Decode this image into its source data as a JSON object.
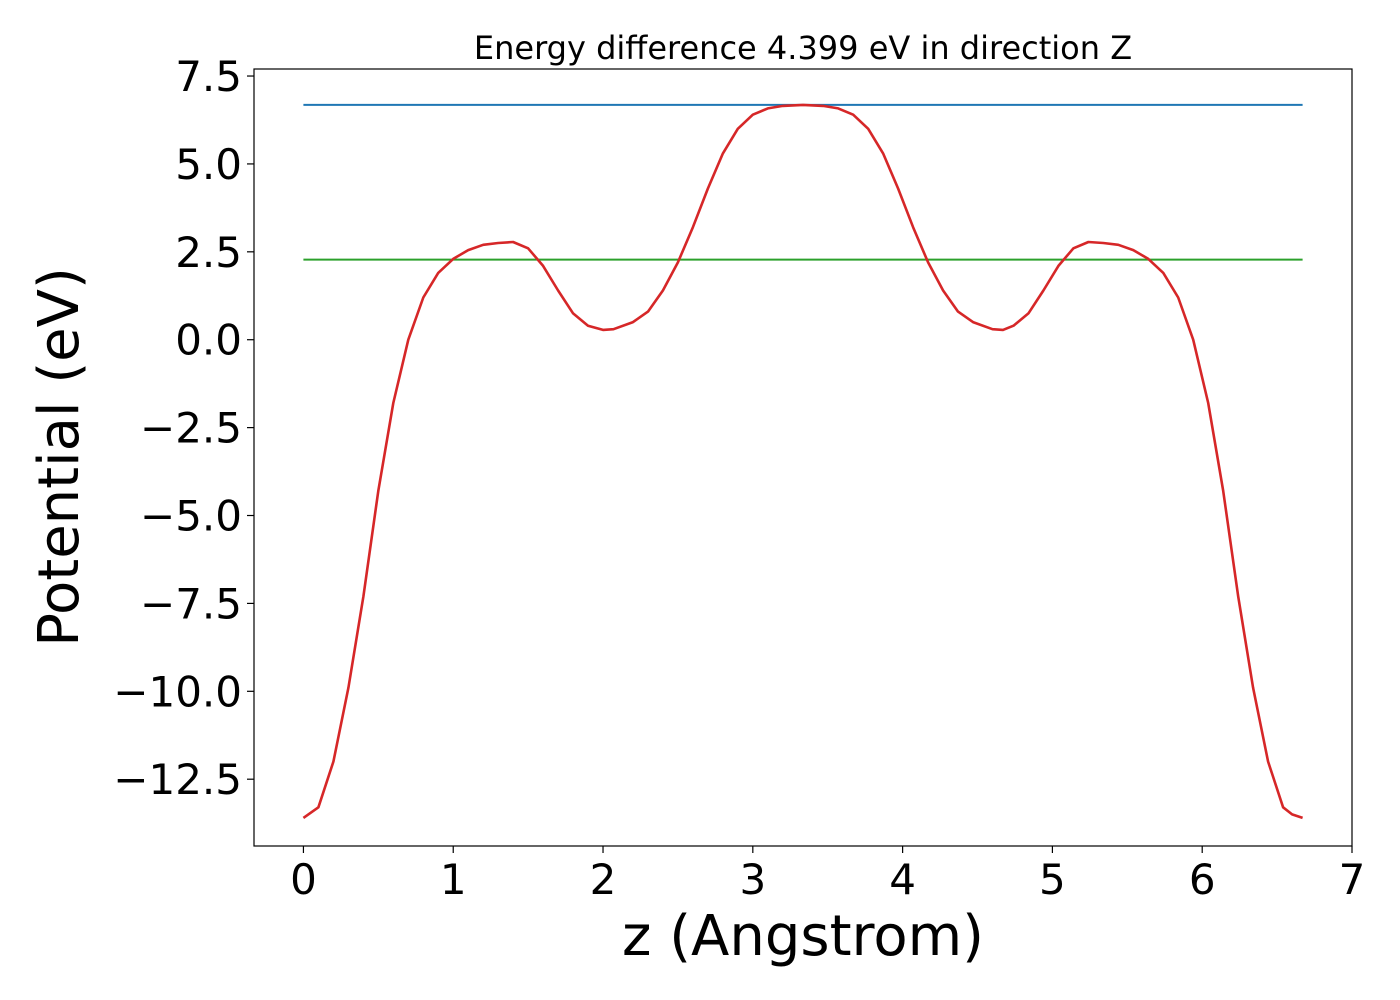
{
  "chart_data": {
    "type": "line",
    "title": "Energy difference 4.399 eV in direction Z",
    "xlabel": "z (Angstrom)",
    "ylabel": "Potential (eV)",
    "xlim": [
      -0.33,
      7.0
    ],
    "ylim": [
      -14.4,
      7.7
    ],
    "xticks": [
      "0",
      "1",
      "2",
      "3",
      "4",
      "5",
      "6",
      "7"
    ],
    "yticks": [
      "−12.5",
      "−10.0",
      "−7.5",
      "−5.0",
      "−2.5",
      "0.0",
      "2.5",
      "5.0",
      "7.5"
    ],
    "grid": false,
    "legend": "none",
    "series": [
      {
        "color": "#1f77b4",
        "x": [
          0,
          6.67
        ],
        "y": [
          6.68,
          6.68
        ]
      },
      {
        "color": "#2ca02c",
        "x": [
          0,
          6.67
        ],
        "y": [
          2.28,
          2.28
        ]
      },
      {
        "color": "#d62728",
        "x": [
          0.0,
          0.1,
          0.2,
          0.3,
          0.4,
          0.5,
          0.6,
          0.7,
          0.8,
          0.9,
          1.0,
          1.1,
          1.2,
          1.3,
          1.4,
          1.5,
          1.6,
          1.7,
          1.8,
          1.9,
          2.0,
          2.07,
          2.2,
          2.3,
          2.4,
          2.5,
          2.6,
          2.7,
          2.8,
          2.9,
          3.0,
          3.1,
          3.2,
          3.335,
          3.47,
          3.57,
          3.67,
          3.77,
          3.87,
          3.97,
          4.07,
          4.17,
          4.27,
          4.37,
          4.47,
          4.6,
          4.67,
          4.74,
          4.84,
          4.94,
          5.04,
          5.14,
          5.24,
          5.34,
          5.44,
          5.54,
          5.64,
          5.74,
          5.84,
          5.94,
          6.04,
          6.14,
          6.24,
          6.34,
          6.44,
          6.54,
          6.6,
          6.67
        ],
        "y": [
          -13.6,
          -13.3,
          -12.0,
          -9.9,
          -7.3,
          -4.3,
          -1.8,
          0.0,
          1.2,
          1.9,
          2.3,
          2.55,
          2.7,
          2.75,
          2.78,
          2.6,
          2.1,
          1.4,
          0.75,
          0.4,
          0.28,
          0.3,
          0.5,
          0.8,
          1.4,
          2.2,
          3.2,
          4.3,
          5.3,
          6.0,
          6.4,
          6.58,
          6.65,
          6.68,
          6.65,
          6.58,
          6.4,
          6.0,
          5.3,
          4.3,
          3.2,
          2.2,
          1.4,
          0.8,
          0.5,
          0.3,
          0.28,
          0.4,
          0.75,
          1.4,
          2.1,
          2.6,
          2.78,
          2.75,
          2.7,
          2.55,
          2.3,
          1.9,
          1.2,
          0.0,
          -1.8,
          -4.3,
          -7.3,
          -9.9,
          -12.0,
          -13.3,
          -13.5,
          -13.6
        ]
      }
    ]
  }
}
